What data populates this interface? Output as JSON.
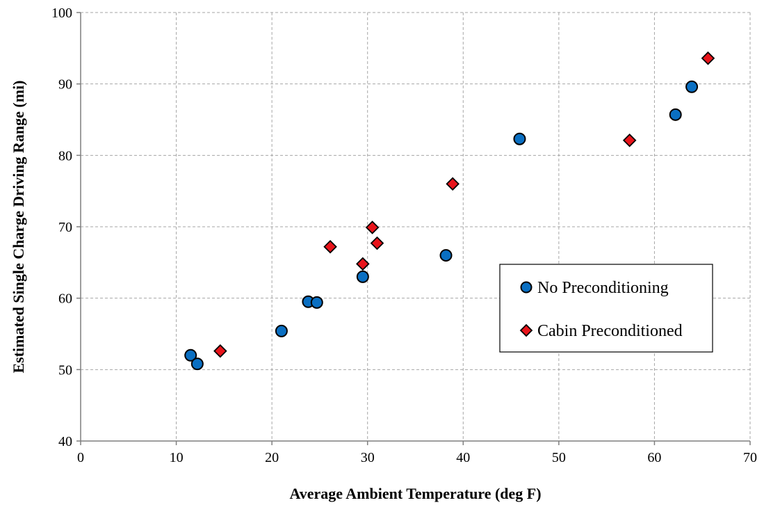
{
  "chart_data": {
    "type": "scatter",
    "xlabel": "Average Ambient Temperature (deg F)",
    "ylabel": "Estimated Single Charge Driving Range (mi)",
    "xlim": [
      0,
      70
    ],
    "ylim": [
      40,
      100
    ],
    "xticks": [
      0,
      10,
      20,
      30,
      40,
      50,
      60,
      70
    ],
    "yticks": [
      40,
      50,
      60,
      70,
      80,
      90,
      100
    ],
    "grid": true,
    "legend_position": "right-middle",
    "series": [
      {
        "name": "No Preconditioning",
        "marker": "circle",
        "color": "#0a6fc2",
        "points": [
          {
            "x": 11.5,
            "y": 52.0
          },
          {
            "x": 12.2,
            "y": 50.8
          },
          {
            "x": 21.0,
            "y": 55.4
          },
          {
            "x": 23.8,
            "y": 59.5
          },
          {
            "x": 24.7,
            "y": 59.4
          },
          {
            "x": 29.5,
            "y": 63.0
          },
          {
            "x": 38.2,
            "y": 66.0
          },
          {
            "x": 45.9,
            "y": 82.3
          },
          {
            "x": 62.2,
            "y": 85.7
          },
          {
            "x": 63.9,
            "y": 89.6
          }
        ]
      },
      {
        "name": "Cabin Preconditioned",
        "marker": "diamond",
        "color": "#e8141b",
        "points": [
          {
            "x": 14.6,
            "y": 52.6
          },
          {
            "x": 26.1,
            "y": 67.2
          },
          {
            "x": 29.5,
            "y": 64.8
          },
          {
            "x": 30.5,
            "y": 69.9
          },
          {
            "x": 31.0,
            "y": 67.7
          },
          {
            "x": 38.9,
            "y": 76.0
          },
          {
            "x": 57.4,
            "y": 82.1
          },
          {
            "x": 65.6,
            "y": 93.6
          }
        ]
      }
    ]
  }
}
